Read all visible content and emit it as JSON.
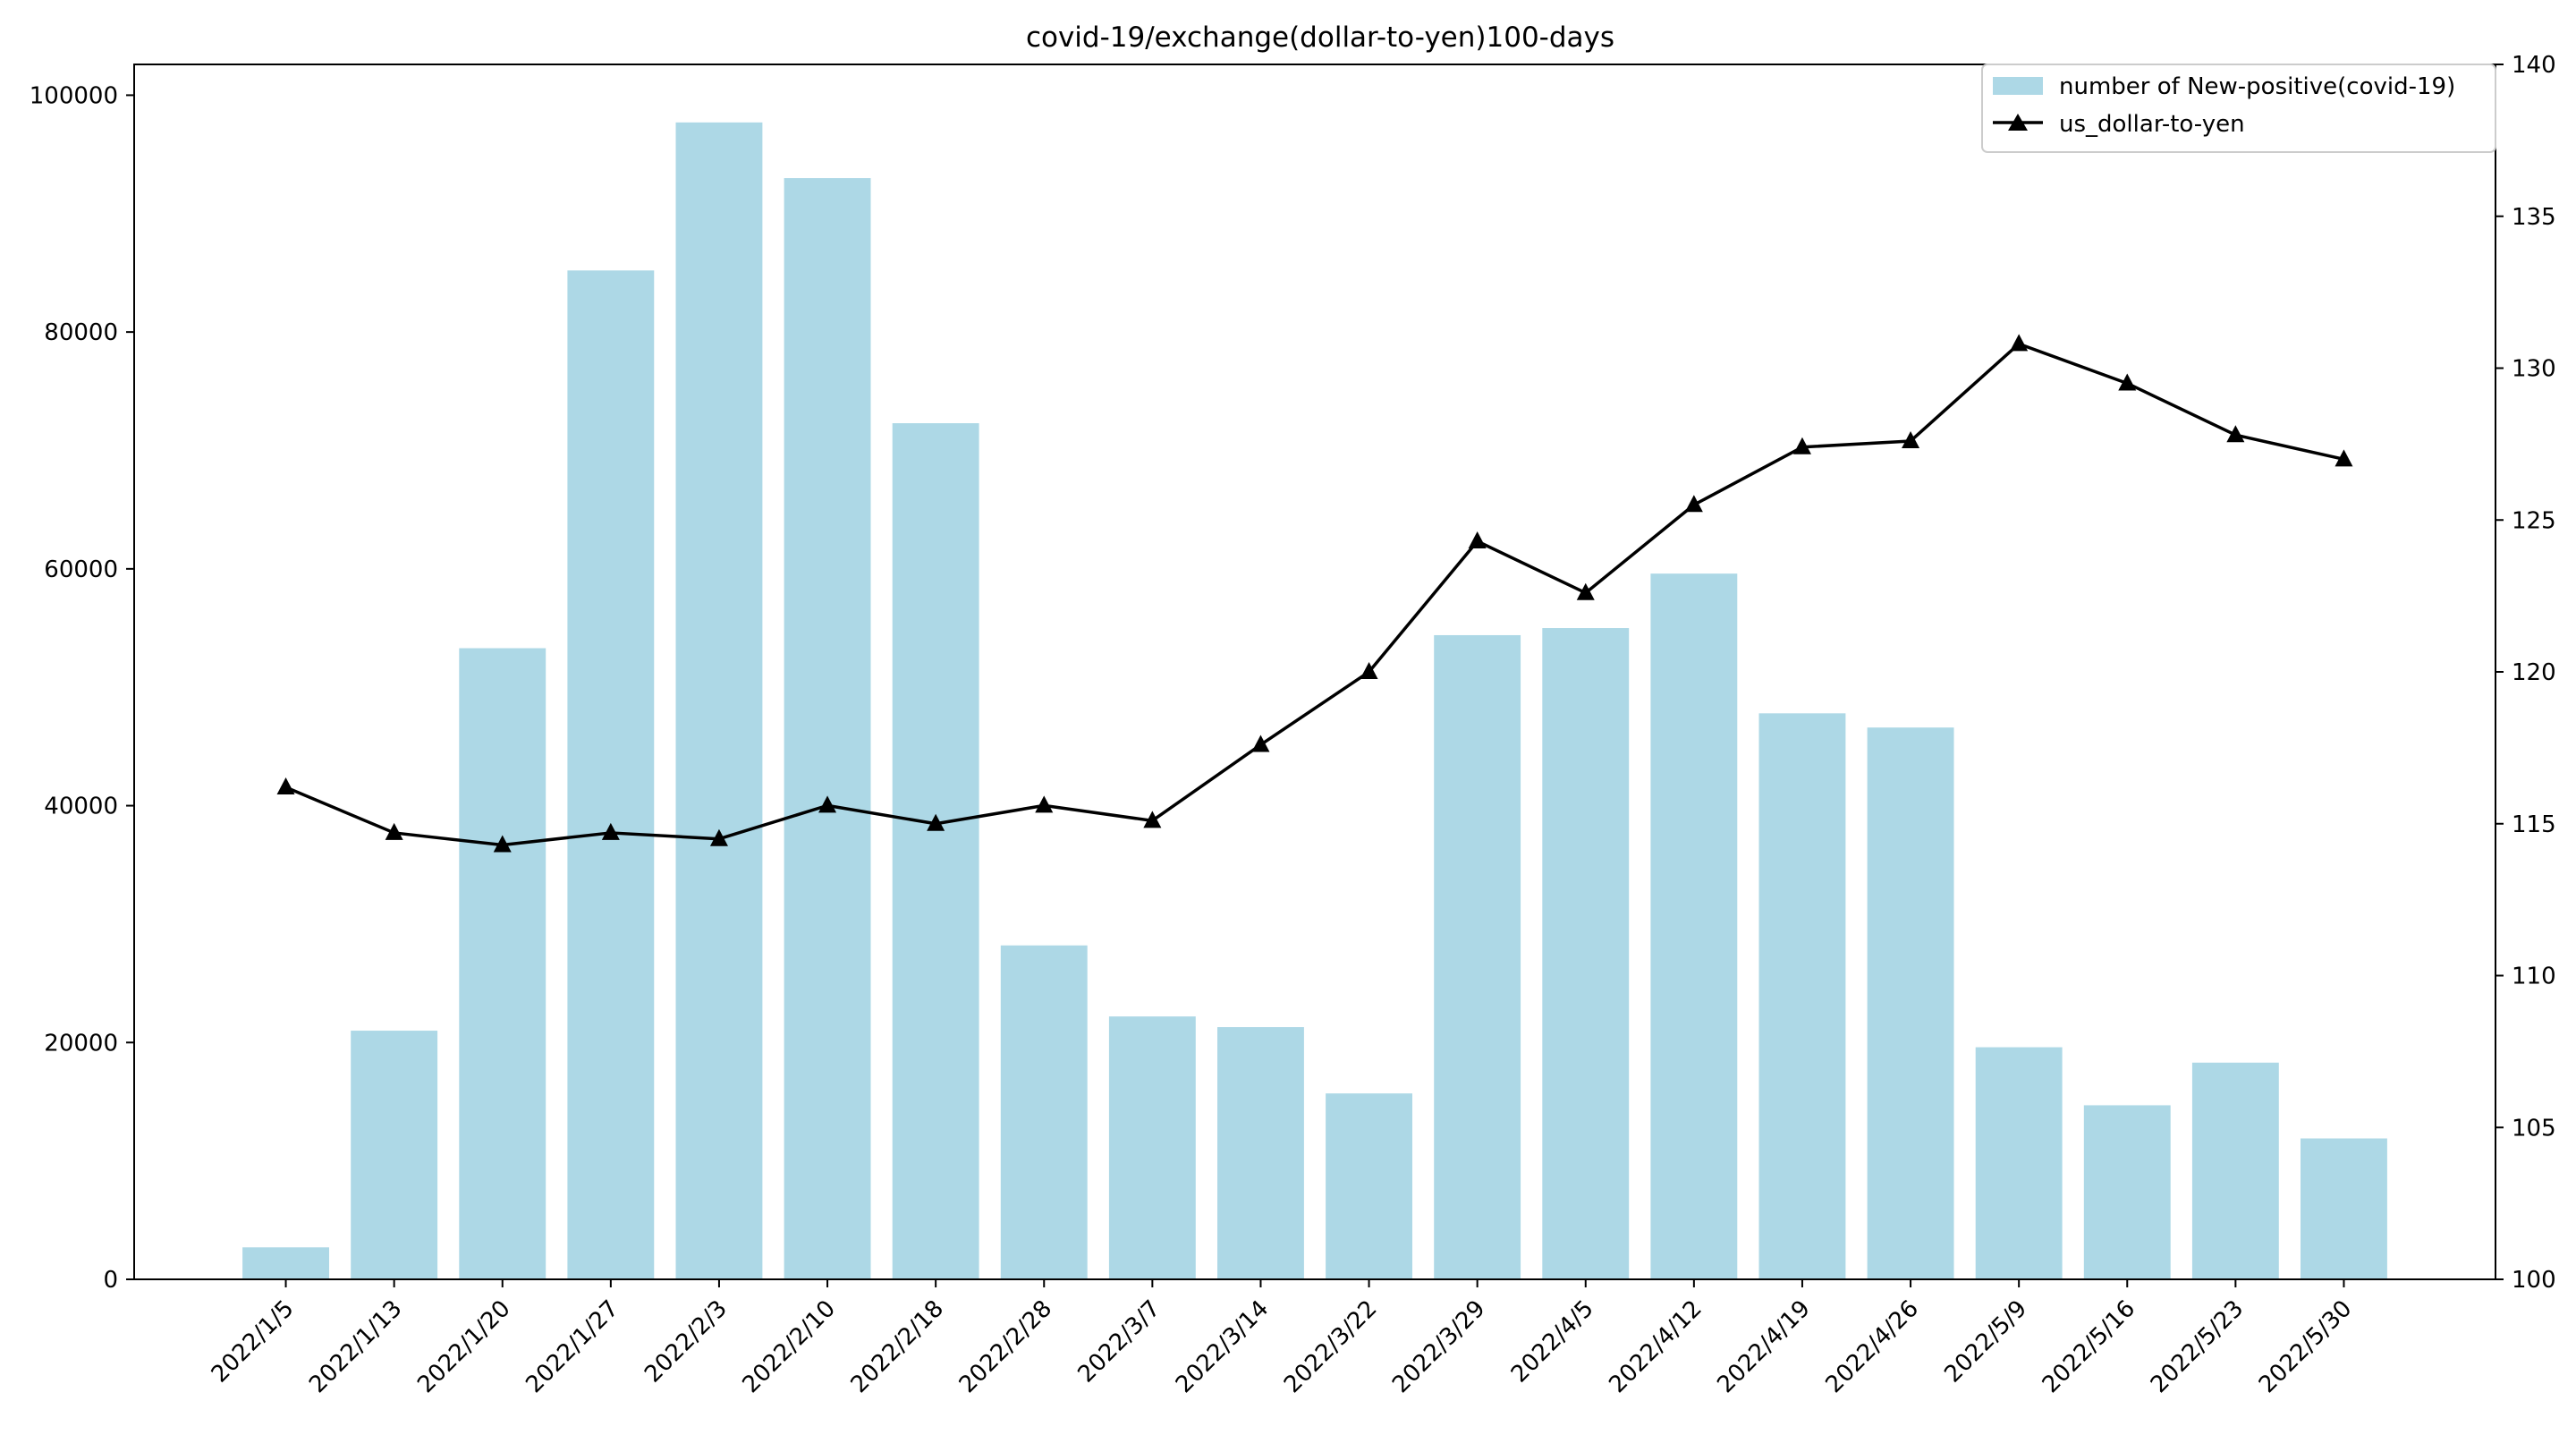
{
  "chart_data": {
    "type": "bar",
    "title": "covid-19/exchange(dollar-to-yen)100-days",
    "xlabel": "",
    "ylabel": "",
    "y2label": "",
    "categories": [
      "2022/1/5",
      "2022/1/13",
      "2022/1/20",
      "2022/1/27",
      "2022/2/3",
      "2022/2/10",
      "2022/2/18",
      "2022/2/28",
      "2022/3/7",
      "2022/3/14",
      "2022/3/22",
      "2022/3/29",
      "2022/4/5",
      "2022/4/12",
      "2022/4/19",
      "2022/4/26",
      "2022/5/9",
      "2022/5/16",
      "2022/5/23",
      "2022/5/30"
    ],
    "series": [
      {
        "name": "number of New-positive(covid-19)",
        "type": "bar",
        "axis": "left",
        "color": "#add8e6",
        "values": [
          2700,
          21000,
          53300,
          85200,
          97700,
          93000,
          72300,
          28200,
          22200,
          21300,
          15700,
          54400,
          55000,
          59600,
          47800,
          46600,
          19600,
          14700,
          18300,
          11900
        ]
      },
      {
        "name": "us_dollar-to-yen",
        "type": "line",
        "axis": "right",
        "marker": "triangle",
        "color": "#000000",
        "values": [
          116.2,
          114.7,
          114.3,
          114.7,
          114.5,
          115.6,
          115.0,
          115.6,
          115.1,
          117.6,
          120.0,
          124.3,
          122.6,
          125.5,
          127.4,
          127.6,
          130.8,
          129.5,
          127.8,
          127.0
        ]
      }
    ],
    "ylim": [
      0,
      102600
    ],
    "yticks": [
      0,
      20000,
      40000,
      60000,
      80000,
      100000
    ],
    "y2lim": [
      100,
      140
    ],
    "y2ticks": [
      100,
      105,
      110,
      115,
      120,
      125,
      130,
      135,
      140
    ],
    "grid": false,
    "legend_position": "top-right"
  }
}
